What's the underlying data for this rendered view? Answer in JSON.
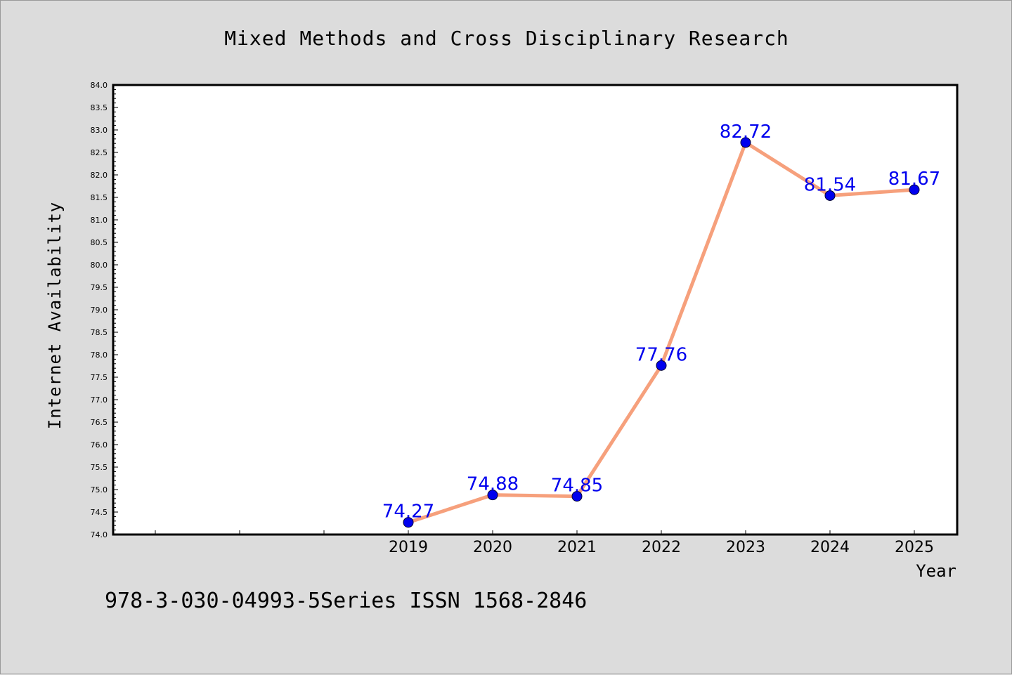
{
  "chart_data": {
    "type": "line",
    "title": "Mixed Methods and Cross Disciplinary Research",
    "xlabel": "Year",
    "ylabel": "Internet Availability",
    "categories": [
      "2019",
      "2020",
      "2021",
      "2022",
      "2023",
      "2024",
      "2025"
    ],
    "series": [
      {
        "values": [
          74.27,
          74.88,
          74.85,
          77.76,
          82.72,
          81.54,
          81.67
        ],
        "data_labels": [
          "74.27",
          "74.88",
          "74.85",
          "77.76",
          "82.72",
          "81.54",
          "81.67"
        ]
      }
    ],
    "ylim": [
      74.0,
      84.0
    ],
    "ytick_step": 0.5,
    "grid": false,
    "legend": "none",
    "line_color": "#f6a07c",
    "marker_color": "#0000ee",
    "label_color": "#0000ee"
  },
  "footer_text": "978-3-030-04993-5Series ISSN 1568-2846"
}
